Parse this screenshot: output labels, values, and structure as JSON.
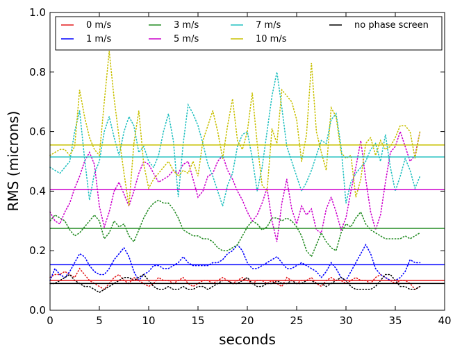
{
  "chart_data": {
    "type": "line",
    "title": "",
    "xlabel": "seconds",
    "ylabel": "RMS (microns)",
    "xlim": [
      0,
      40
    ],
    "ylim": [
      0.0,
      1.0
    ],
    "x_ticks": [
      "0",
      "5",
      "10",
      "15",
      "20",
      "25",
      "30",
      "35",
      "40"
    ],
    "y_ticks": [
      "0.0",
      "0.2",
      "0.4",
      "0.6",
      "0.8",
      "1.0"
    ],
    "legend_position": "top",
    "legend": [
      {
        "label": "0 m/s",
        "color": "#e41a1c"
      },
      {
        "label": "1 m/s",
        "color": "#0000ff"
      },
      {
        "label": "3 m/s",
        "color": "#228b22"
      },
      {
        "label": "5 m/s",
        "color": "#cc00cc"
      },
      {
        "label": "7 m/s",
        "color": "#20c0c0"
      },
      {
        "label": "10 m/s",
        "color": "#c8c000"
      },
      {
        "label": "no phase screen",
        "color": "#000000"
      }
    ],
    "x": [
      0,
      0.5,
      1,
      1.5,
      2,
      2.5,
      3,
      3.5,
      4,
      4.5,
      5,
      5.5,
      6,
      6.5,
      7,
      7.5,
      8,
      8.5,
      9,
      9.5,
      10,
      10.5,
      11,
      11.5,
      12,
      12.5,
      13,
      13.5,
      14,
      14.5,
      15,
      15.5,
      16,
      16.5,
      17,
      17.5,
      18,
      18.5,
      19,
      19.5,
      20,
      20.5,
      21,
      21.5,
      22,
      22.5,
      23,
      23.5,
      24,
      24.5,
      25,
      25.5,
      26,
      26.5,
      27,
      27.5,
      28,
      28.5,
      29,
      29.5,
      30,
      30.5,
      31,
      31.5,
      32,
      32.5,
      33,
      33.5,
      34,
      34.5,
      35,
      35.5,
      36,
      36.5,
      37,
      37.5
    ],
    "series": [
      {
        "name": "0 m/s",
        "color": "#e41a1c",
        "style": "dotted",
        "values": [
          0.11,
          0.12,
          0.12,
          0.13,
          0.12,
          0.11,
          0.14,
          0.12,
          0.1,
          0.09,
          0.08,
          0.07,
          0.09,
          0.11,
          0.12,
          0.1,
          0.09,
          0.11,
          0.1,
          0.09,
          0.08,
          0.09,
          0.11,
          0.1,
          0.1,
          0.09,
          0.1,
          0.11,
          0.09,
          0.08,
          0.09,
          0.1,
          0.1,
          0.09,
          0.1,
          0.11,
          0.1,
          0.09,
          0.1,
          0.11,
          0.1,
          0.09,
          0.1,
          0.1,
          0.09,
          0.1,
          0.09,
          0.08,
          0.11,
          0.1,
          0.09,
          0.1,
          0.1,
          0.11,
          0.09,
          0.08,
          0.1,
          0.11,
          0.1,
          0.1,
          0.09,
          0.1,
          0.11,
          0.1,
          0.1,
          0.09,
          0.11,
          0.12,
          0.11,
          0.1,
          0.09,
          0.1,
          0.1,
          0.09,
          0.07,
          0.08
        ]
      },
      {
        "name": "1 m/s",
        "color": "#0000ff",
        "style": "dotted",
        "values": [
          0.1,
          0.14,
          0.12,
          0.11,
          0.13,
          0.16,
          0.19,
          0.18,
          0.15,
          0.13,
          0.12,
          0.12,
          0.14,
          0.17,
          0.19,
          0.21,
          0.18,
          0.13,
          0.1,
          0.12,
          0.13,
          0.15,
          0.15,
          0.14,
          0.14,
          0.15,
          0.16,
          0.18,
          0.16,
          0.15,
          0.15,
          0.15,
          0.15,
          0.16,
          0.16,
          0.17,
          0.19,
          0.2,
          0.22,
          0.2,
          0.16,
          0.14,
          0.14,
          0.15,
          0.16,
          0.17,
          0.18,
          0.16,
          0.14,
          0.14,
          0.15,
          0.16,
          0.15,
          0.14,
          0.13,
          0.11,
          0.13,
          0.16,
          0.14,
          0.11,
          0.1,
          0.13,
          0.16,
          0.19,
          0.22,
          0.19,
          0.14,
          0.12,
          0.11,
          0.1,
          0.1,
          0.11,
          0.13,
          0.17,
          0.16,
          0.16
        ]
      },
      {
        "name": "3 m/s",
        "color": "#228b22",
        "style": "dotted",
        "values": [
          0.3,
          0.32,
          0.31,
          0.3,
          0.27,
          0.25,
          0.26,
          0.28,
          0.3,
          0.32,
          0.3,
          0.24,
          0.26,
          0.3,
          0.28,
          0.29,
          0.25,
          0.23,
          0.27,
          0.31,
          0.34,
          0.36,
          0.37,
          0.36,
          0.36,
          0.34,
          0.31,
          0.27,
          0.26,
          0.25,
          0.25,
          0.24,
          0.24,
          0.23,
          0.21,
          0.2,
          0.2,
          0.21,
          0.22,
          0.25,
          0.28,
          0.3,
          0.29,
          0.27,
          0.28,
          0.31,
          0.31,
          0.3,
          0.31,
          0.3,
          0.28,
          0.25,
          0.2,
          0.18,
          0.22,
          0.26,
          0.23,
          0.21,
          0.2,
          0.26,
          0.29,
          0.28,
          0.31,
          0.33,
          0.29,
          0.27,
          0.26,
          0.25,
          0.24,
          0.24,
          0.24,
          0.24,
          0.25,
          0.24,
          0.25,
          0.26
        ]
      },
      {
        "name": "5 m/s",
        "color": "#cc00cc",
        "style": "dotted",
        "values": [
          0.33,
          0.3,
          0.29,
          0.33,
          0.36,
          0.41,
          0.45,
          0.5,
          0.53,
          0.49,
          0.35,
          0.28,
          0.33,
          0.4,
          0.43,
          0.39,
          0.35,
          0.4,
          0.46,
          0.5,
          0.49,
          0.46,
          0.43,
          0.44,
          0.45,
          0.47,
          0.46,
          0.49,
          0.5,
          0.44,
          0.38,
          0.4,
          0.45,
          0.46,
          0.5,
          0.52,
          0.47,
          0.44,
          0.4,
          0.37,
          0.33,
          0.3,
          0.32,
          0.36,
          0.41,
          0.3,
          0.23,
          0.36,
          0.44,
          0.34,
          0.29,
          0.35,
          0.32,
          0.34,
          0.27,
          0.26,
          0.34,
          0.38,
          0.33,
          0.27,
          0.31,
          0.4,
          0.48,
          0.57,
          0.44,
          0.33,
          0.27,
          0.32,
          0.43,
          0.53,
          0.55,
          0.6,
          0.55,
          0.5,
          0.52,
          0.6
        ]
      },
      {
        "name": "7 m/s",
        "color": "#20c0c0",
        "style": "dotted",
        "values": [
          0.48,
          0.47,
          0.46,
          0.48,
          0.5,
          0.6,
          0.67,
          0.51,
          0.37,
          0.46,
          0.5,
          0.6,
          0.65,
          0.58,
          0.52,
          0.6,
          0.65,
          0.62,
          0.53,
          0.55,
          0.5,
          0.48,
          0.52,
          0.6,
          0.66,
          0.57,
          0.38,
          0.56,
          0.69,
          0.66,
          0.62,
          0.56,
          0.49,
          0.45,
          0.4,
          0.35,
          0.42,
          0.46,
          0.55,
          0.59,
          0.6,
          0.51,
          0.4,
          0.48,
          0.6,
          0.72,
          0.8,
          0.68,
          0.55,
          0.5,
          0.45,
          0.4,
          0.43,
          0.47,
          0.52,
          0.57,
          0.56,
          0.64,
          0.66,
          0.55,
          0.36,
          0.43,
          0.46,
          0.48,
          0.5,
          0.54,
          0.56,
          0.5,
          0.59,
          0.48,
          0.4,
          0.45,
          0.51,
          0.47,
          0.41,
          0.45
        ]
      },
      {
        "name": "10 m/s",
        "color": "#c8c000",
        "style": "dotted",
        "values": [
          0.52,
          0.53,
          0.54,
          0.54,
          0.52,
          0.55,
          0.74,
          0.65,
          0.58,
          0.54,
          0.52,
          0.7,
          0.87,
          0.71,
          0.58,
          0.46,
          0.35,
          0.56,
          0.67,
          0.49,
          0.41,
          0.44,
          0.46,
          0.48,
          0.5,
          0.47,
          0.45,
          0.47,
          0.46,
          0.5,
          0.45,
          0.57,
          0.62,
          0.67,
          0.6,
          0.51,
          0.62,
          0.71,
          0.57,
          0.54,
          0.6,
          0.73,
          0.56,
          0.42,
          0.4,
          0.61,
          0.56,
          0.74,
          0.72,
          0.7,
          0.64,
          0.5,
          0.59,
          0.83,
          0.6,
          0.53,
          0.47,
          0.68,
          0.65,
          0.53,
          0.51,
          0.52,
          0.38,
          0.44,
          0.56,
          0.58,
          0.52,
          0.57,
          0.54,
          0.55,
          0.58,
          0.62,
          0.62,
          0.6,
          0.51,
          0.6
        ]
      },
      {
        "name": "no phase screen",
        "color": "#000000",
        "style": "dotted",
        "values": [
          0.09,
          0.09,
          0.1,
          0.11,
          0.12,
          0.1,
          0.09,
          0.08,
          0.08,
          0.07,
          0.06,
          0.07,
          0.08,
          0.09,
          0.1,
          0.11,
          0.11,
          0.1,
          0.11,
          0.12,
          0.1,
          0.08,
          0.07,
          0.07,
          0.08,
          0.07,
          0.07,
          0.08,
          0.07,
          0.07,
          0.08,
          0.08,
          0.07,
          0.08,
          0.09,
          0.1,
          0.1,
          0.09,
          0.09,
          0.1,
          0.11,
          0.09,
          0.08,
          0.08,
          0.09,
          0.09,
          0.1,
          0.09,
          0.09,
          0.1,
          0.09,
          0.09,
          0.1,
          0.1,
          0.09,
          0.09,
          0.08,
          0.09,
          0.1,
          0.11,
          0.1,
          0.08,
          0.07,
          0.07,
          0.07,
          0.07,
          0.08,
          0.1,
          0.12,
          0.12,
          0.1,
          0.08,
          0.08,
          0.07,
          0.07,
          0.08
        ]
      }
    ],
    "reference_lines": [
      {
        "name": "0 m/s mean",
        "color": "#e41a1c",
        "y": 0.1
      },
      {
        "name": "1 m/s mean",
        "color": "#0000ff",
        "y": 0.153
      },
      {
        "name": "3 m/s mean",
        "color": "#228b22",
        "y": 0.275
      },
      {
        "name": "5 m/s mean",
        "color": "#cc00cc",
        "y": 0.405
      },
      {
        "name": "7 m/s mean",
        "color": "#20c0c0",
        "y": 0.515
      },
      {
        "name": "10 m/s mean",
        "color": "#c8c000",
        "y": 0.555
      },
      {
        "name": "no phase screen mean",
        "color": "#000000",
        "y": 0.09
      }
    ]
  }
}
